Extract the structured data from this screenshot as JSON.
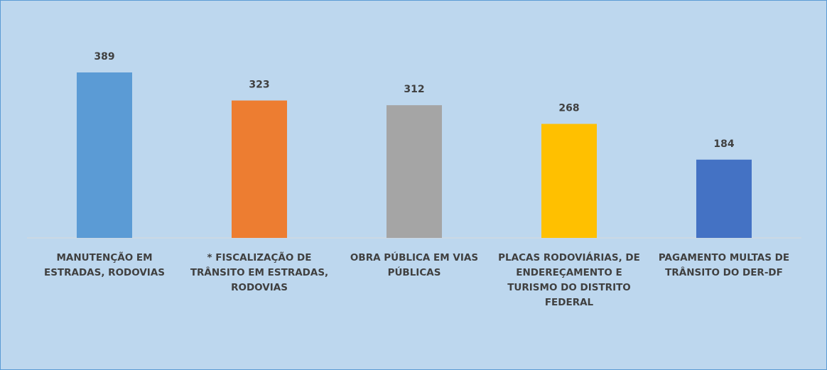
{
  "chart_data": {
    "type": "bar",
    "categories": [
      "MANUTENÇÃO EM ESTRADAS, RODOVIAS",
      "* FISCALIZAÇÃO DE TRÂNSITO EM ESTRADAS, RODOVIAS",
      "OBRA PÚBLICA EM VIAS PÚBLICAS",
      "PLACAS RODOVIÁRIAS, DE ENDEREÇAMENTO E TURISMO DO DISTRITO FEDERAL",
      "PAGAMENTO MULTAS DE TRÂNSITO DO DER-DF"
    ],
    "values": [
      389,
      323,
      312,
      268,
      184
    ],
    "colors": [
      "#5b9bd5",
      "#ed7d31",
      "#a5a5a5",
      "#ffc000",
      "#4472c4"
    ]
  }
}
